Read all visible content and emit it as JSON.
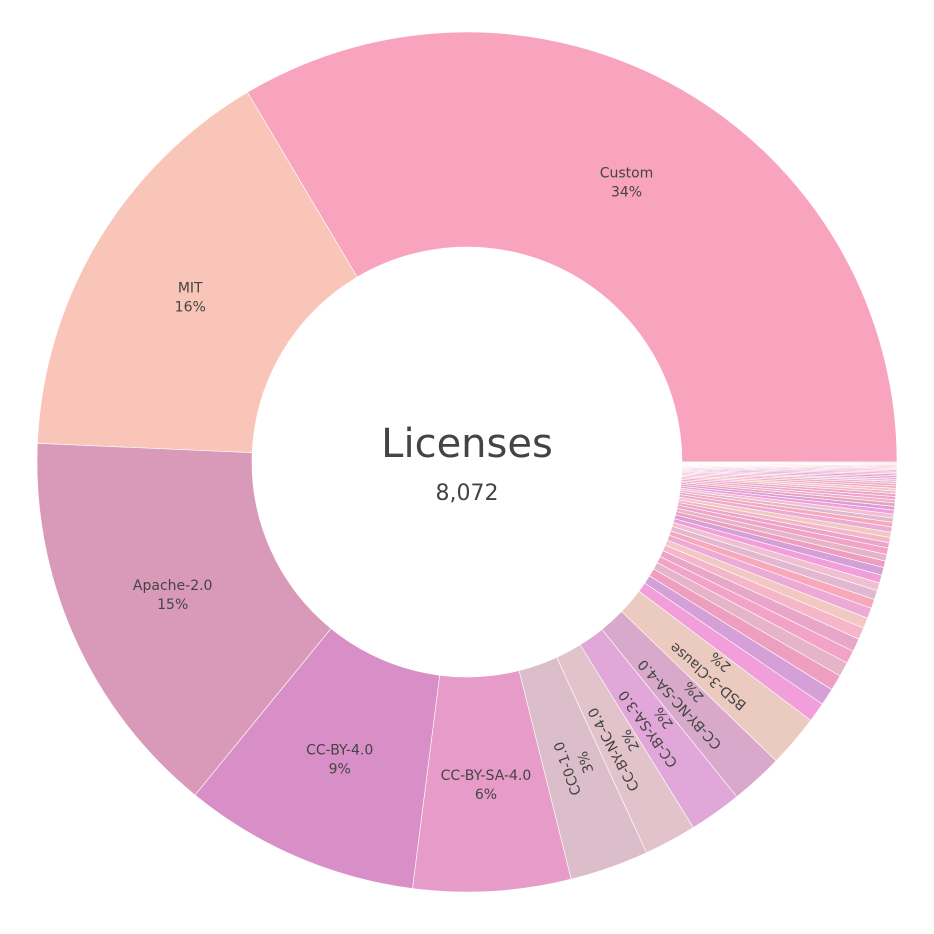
{
  "center": {
    "title": "Licenses",
    "total": "8,072"
  },
  "chart_data": {
    "type": "pie",
    "hole": true,
    "total": 8072,
    "slices": [
      {
        "label": "Custom",
        "percent": 34,
        "color": "#f9a4bf"
      },
      {
        "label": "MIT",
        "percent": 16,
        "color": "#f8c5b8"
      },
      {
        "label": "Apache-2.0",
        "percent": 15,
        "color": "#d99aba"
      },
      {
        "label": "CC-BY-4.0",
        "percent": 9,
        "color": "#d88fc8"
      },
      {
        "label": "CC-BY-SA-4.0",
        "percent": 6,
        "color": "#e69bc8"
      },
      {
        "label": "CC0-1.0",
        "percent": 3,
        "color": "#dbbec9"
      },
      {
        "label": "CC-BY-NC-4.0",
        "percent": 2,
        "color": "#e3c3cb"
      },
      {
        "label": "CC-BY-SA-3.0",
        "percent": 2,
        "color": "#e0a7d8"
      },
      {
        "label": "CC-BY-NC-SA-4.0",
        "percent": 2,
        "color": "#d8a9cb"
      },
      {
        "label": "BSD-3-Clause",
        "percent": 2,
        "color": "#ebcac0"
      }
    ],
    "small_slices_percent": [
      0.75,
      0.65,
      0.6,
      0.55,
      0.5,
      0.5,
      0.45,
      0.4,
      0.4,
      0.35,
      0.35,
      0.3,
      0.3,
      0.3,
      0.25,
      0.25,
      0.25,
      0.2,
      0.2,
      0.2,
      0.2,
      0.18,
      0.16,
      0.15,
      0.15,
      0.14,
      0.13,
      0.12,
      0.12,
      0.11,
      0.1,
      0.1,
      0.09,
      0.09,
      0.08,
      0.08,
      0.07,
      0.07,
      0.06,
      0.06,
      0.05,
      0.05,
      0.05,
      0.04,
      0.04,
      0.04,
      0.03,
      0.03,
      0.03,
      0.03
    ],
    "small_slice_colors": [
      "#f19edb",
      "#d5a0d8",
      "#ee9fbf",
      "#e5b4c8",
      "#f3a3c7",
      "#e8a6c9",
      "#f6b6c9",
      "#f2c8c2",
      "#ecaad6",
      "#f7a9bb",
      "#e1b8cf",
      "#f0bfd2"
    ]
  }
}
